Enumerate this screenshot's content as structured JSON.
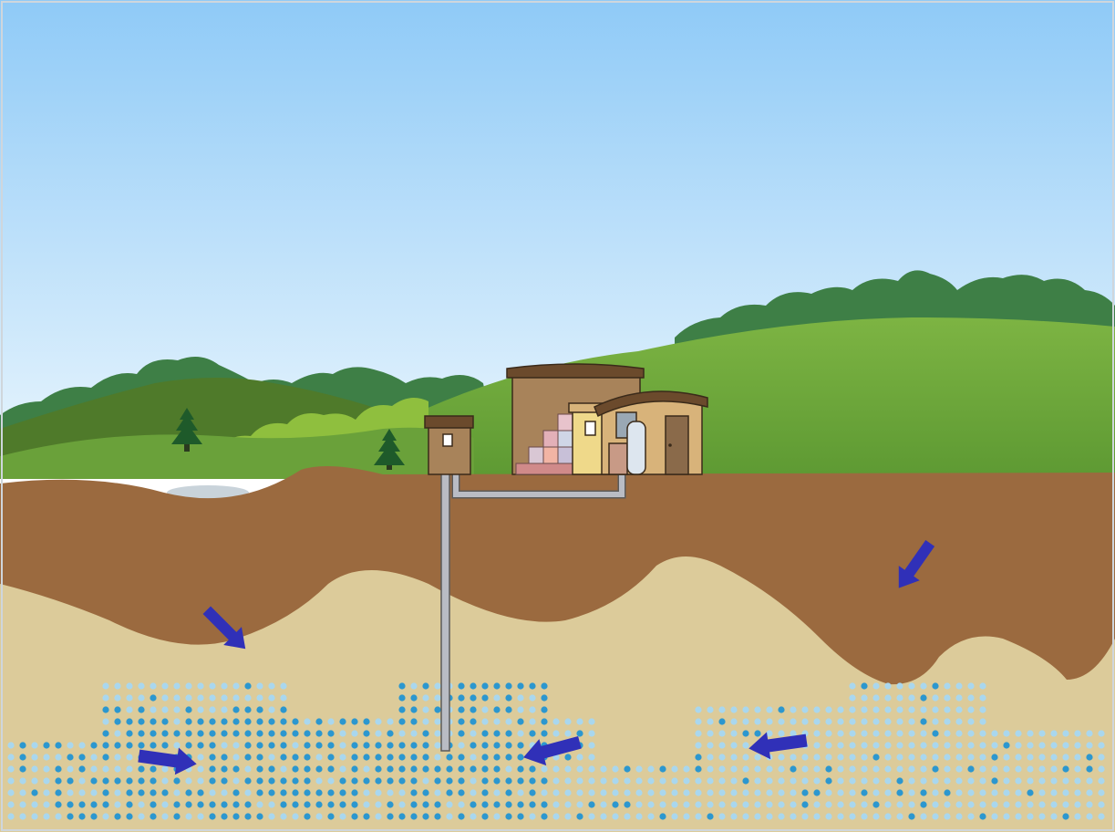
{
  "scene": {
    "description_visible_text": "",
    "colors": {
      "sky_top": "#8fcaf7",
      "sky_bottom": "#eaf6fd",
      "far_trees": "#3e7f46",
      "far_hill_dark": "#4f7a2a",
      "far_hill": "#5e8f30",
      "near_hill": "#6aa13a",
      "right_hill": "#73ab3c",
      "light_bushes": "#8fbf3e",
      "topsoil": "#9b6a3f",
      "sand": "#dccb9a",
      "water_dot_dark": "#2c97cf",
      "water_dot_light": "#a9d7ee",
      "flow_arrow": "#3030b8",
      "pipe": "#b9bcc4",
      "pipe_outline": "#5b5b5b",
      "wellhead": "#a8835a",
      "tank": "#a8835a",
      "building": "#d8b37a",
      "building_roof": "#6b4a2c",
      "door": "#8a6a4a",
      "pond": "#c9d3da"
    },
    "icons": [
      "pine-tree-icon",
      "pump-house-icon",
      "storage-tank-icon",
      "treatment-building-icon",
      "well-pipe-icon",
      "flow-arrow-icon"
    ],
    "flow_arrows": [
      {
        "name": "flow-arrow-top-left",
        "direction": "down-right"
      },
      {
        "name": "flow-arrow-top-right",
        "direction": "down-left"
      },
      {
        "name": "flow-arrow-bottom-left",
        "direction": "right"
      },
      {
        "name": "flow-arrow-bottom-center",
        "direction": "left"
      },
      {
        "name": "flow-arrow-bottom-right",
        "direction": "left"
      }
    ]
  }
}
